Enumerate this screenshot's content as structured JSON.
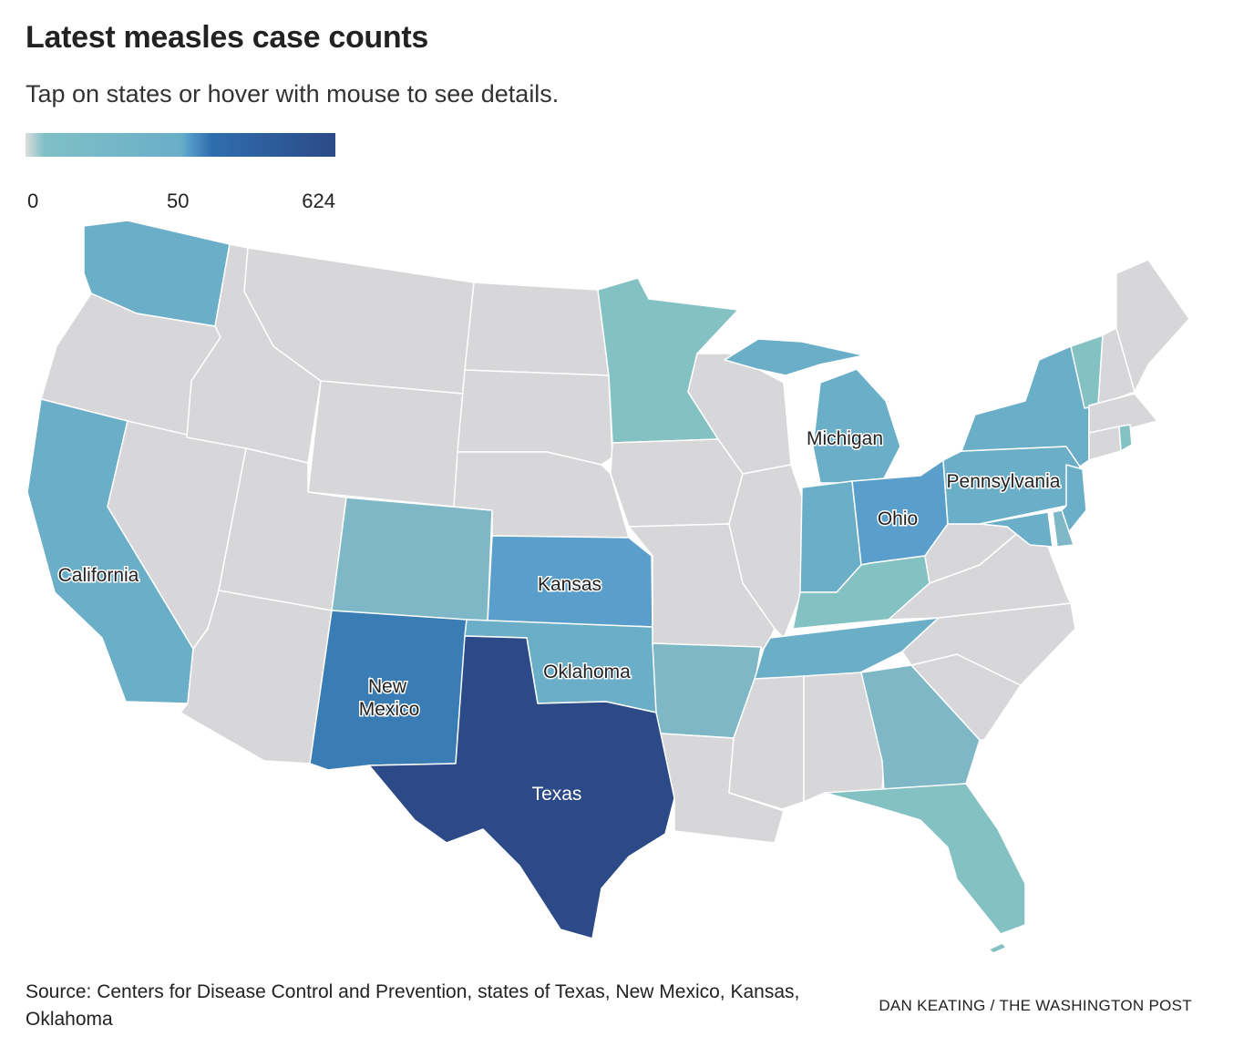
{
  "title": "Latest measles case counts",
  "subtitle": "Tap on states or hover with mouse to see details.",
  "legend": {
    "min": "0",
    "mid": "50",
    "max": "624"
  },
  "colors": {
    "none": "#d7d6d9",
    "teal": "#84c1c3",
    "light_blue": "#7eb8c6",
    "blue": "#6aaec8",
    "mid_blue": "#5a9fcb",
    "strong_blue": "#3a7db4",
    "dark_blue": "#2c4a87"
  },
  "state_labels": {
    "california": "California",
    "kansas": "Kansas",
    "oklahoma": "Oklahoma",
    "new_mexico_line1": "New",
    "new_mexico_line2": "Mexico",
    "texas": "Texas",
    "michigan": "Michigan",
    "ohio": "Ohio",
    "pennsylvania": "Pennsylvania"
  },
  "source": "Source: Centers for Disease Control and Prevention, states of Texas, New Mexico, Kansas, Oklahoma",
  "credit": "DAN KEATING / THE WASHINGTON POST"
}
